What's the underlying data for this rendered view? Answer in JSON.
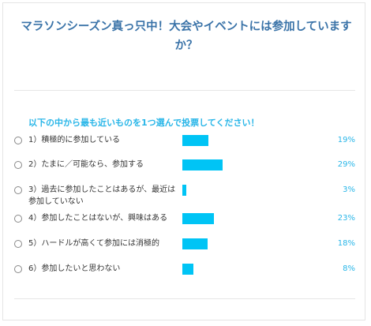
{
  "survey": {
    "title": "マラソンシーズン真っ只中！大会やイベントには参加していますか？",
    "prompt": "以下の中から最も近いものを1つ選んで投票してください！",
    "accent_color": "#00c4f5",
    "title_color": "#3a73a8"
  },
  "chart_data": {
    "type": "bar",
    "categories": [
      "1）積極的に参加している",
      "2）たまに／可能なら、参加する",
      "3）過去に参加したことはあるが、最近は参加していない",
      "4）参加したことはないが、興味はある",
      "5）ハードルが高くて参加には消極的",
      "6）参加したいと思わない"
    ],
    "values": [
      19,
      29,
      3,
      23,
      18,
      8
    ],
    "value_labels": [
      "19%",
      "29%",
      "3%",
      "23%",
      "18%",
      "8%"
    ],
    "unit": "%"
  }
}
